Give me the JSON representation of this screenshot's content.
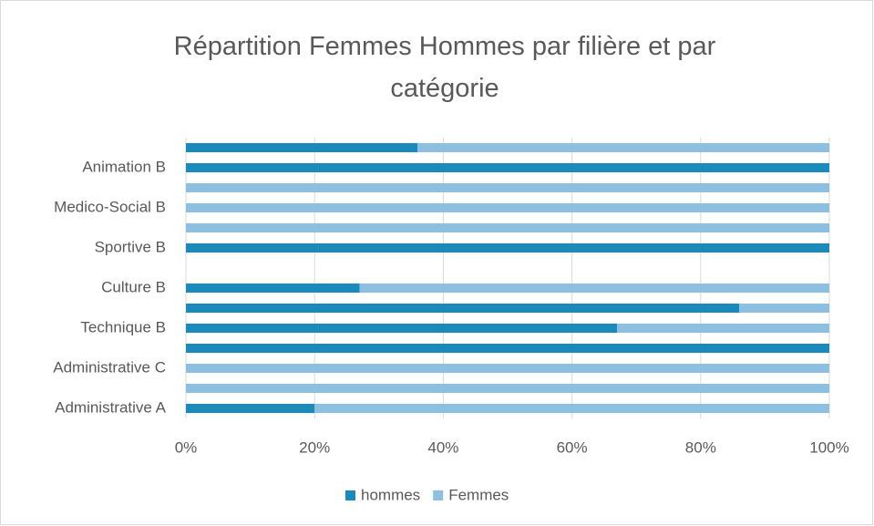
{
  "chart_data": {
    "type": "stacked_bar_horizontal",
    "title": "Répartition Femmes Hommes par filière et par catégorie",
    "categories": [
      "Administrative A",
      null,
      "Administrative C",
      null,
      "Technique B",
      null,
      "Culture B",
      null,
      "Sportive B",
      null,
      "Medico-Social B",
      null,
      "Animation B",
      null
    ],
    "series": [
      {
        "name": "hommes",
        "color": "#1a8abd",
        "values": [
          20,
          0,
          0,
          100,
          67,
          86,
          27,
          0,
          100,
          0,
          0,
          0,
          100,
          36
        ]
      },
      {
        "name": "Femmes",
        "color": "#8cbfe0",
        "values": [
          80,
          100,
          100,
          0,
          33,
          14,
          73,
          0,
          0,
          100,
          100,
          100,
          0,
          64
        ]
      }
    ],
    "xlim": [
      0,
      100
    ],
    "xticks": [
      {
        "value": 0,
        "label": "0%"
      },
      {
        "value": 20,
        "label": "20%"
      },
      {
        "value": 40,
        "label": "40%"
      },
      {
        "value": 60,
        "label": "60%"
      },
      {
        "value": 80,
        "label": "80%"
      },
      {
        "value": 100,
        "label": "100%"
      }
    ],
    "grid": true,
    "legend": "bottom"
  }
}
